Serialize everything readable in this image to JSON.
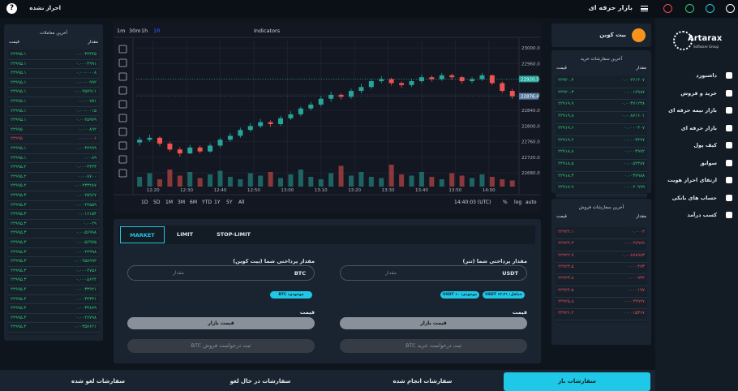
{
  "topbar": {
    "title": "بازار حرفه ای",
    "status": "احراز نشده",
    "help": "?"
  },
  "nav": {
    "logo": "Artarax",
    "logo_sub": "Software Group",
    "items": [
      "داشبورد",
      "خرید و فروش",
      "بازار نیمه حرفه ای",
      "بازار حرفه ای",
      "کیف پول",
      "سوابق",
      "ارتقای احراز هویت",
      "حساب های بانکی",
      "کسب درآمد"
    ]
  },
  "coin": {
    "name": "بیت کوین"
  },
  "buy_orders": {
    "title": "آخرین سفارشات خرید",
    "columns": [
      "مقدار",
      "قیمت"
    ],
    "color": "#2ecc71",
    "rows": [
      [
        "۰.۰۰۲۲۱۴۰۷",
        "۲۲۹۲۰.۴"
      ],
      [
        "۰.۰۰۱۷۹۸۷",
        "۲۲۹۲۰.۳"
      ],
      [
        "۰.۰۰۳۷۱۲۳۸",
        "۲۲۹۱۹.۹"
      ],
      [
        "۰.۰۰۸۷۱۶۰۱",
        "۲۲۹۱۹.۸"
      ],
      [
        "۰.۰۰۰۰۴۰۷",
        "۲۲۹۱۹.۶"
      ],
      [
        "۰.۰۰۰۳۴۲۷",
        "۲۲۹۱۹.۲"
      ],
      [
        "۰.۰۰۰۴۹۷۲",
        "۲۲۹۱۸.۸"
      ],
      [
        "۰.۰۰۵۲۳۸۷",
        "۲۲۹۱۸.۵"
      ],
      [
        "۰.۰۰۳۷۹۸۸",
        "۲۲۹۱۸.۳"
      ],
      [
        "۰.۰۰۲۰۹۹۹",
        "۲۲۹۱۷.۹"
      ]
    ]
  },
  "sell_orders": {
    "title": "آخرین سفارشات فروش",
    "columns": [
      "مقدار",
      "قیمت"
    ],
    "color": "#e74c5a",
    "rows": [
      [
        "۰.۰۰۰۴",
        "۲۲۹۲۲.۱"
      ],
      [
        "۰.۰۰۲۷۹۸۹",
        "۲۲۹۲۲.۳"
      ],
      [
        "۰.۰۰۸۷۸۹۸۳",
        "۲۲۹۲۲.۷"
      ],
      [
        "۰.۰۰۰۴۷۳",
        "۲۲۹۲۳.۵"
      ],
      [
        "۰.۰۰۰۹۳۲",
        "۲۲۹۲۳.۸"
      ],
      [
        "۰.۰۰۰۱۹۷",
        "۲۲۹۲۴.۵"
      ],
      [
        "۰.۰۰۲۲۹۲۷",
        "۲۲۹۲۵.۸"
      ],
      [
        "۰.۰۰۱۵۳۶۷",
        "۲۲۹۲۶.۲"
      ]
    ]
  },
  "trades": {
    "title": "آخرین معاملات",
    "columns": [
      "مقدار",
      "قیمت"
    ],
    "rows": [
      [
        "۰.۰۰۳۲۴۴۵",
        "۲۲۹۹۵.۱"
      ],
      [
        "۰.۰۰۰۴۹۹۱",
        "۲۲۹۹۵.۱"
      ],
      [
        "۰.۰۰۰۰۰۰۸",
        "۲۲۹۹۵.۱"
      ],
      [
        "۰.۰۰۰۰۹۹۲",
        "۲۲۹۹۵.۱"
      ],
      [
        "۰.۰۰۲۵۷۹۱۱",
        "۲۲۹۹۵.۱"
      ],
      [
        "۰.۰۰۰۷۵۱",
        "۲۲۹۹۵.۱"
      ],
      [
        "۰.۰۰۰۰۰۱۵",
        "۲۲۹۹۵.۱"
      ],
      [
        "۰.۰۰۲۵۹۷۹",
        "۲۲۹۹۵.۱"
      ],
      [
        "۰.۰۰۰۸۹۲",
        "۲۲۹۹۵"
      ],
      [
        "۰.۰۰۰۰۰۶",
        "۲۲۹۹۵"
      ],
      [
        "۰.۰۰۳۷۹۹۹",
        "۲۲۹۹۵.۱"
      ],
      [
        "۰.۰۰۸۹",
        "۲۲۹۹۵.۱"
      ],
      [
        "۰.۰۰۰۴۴۴۳",
        "۲۲۹۹۵.۲"
      ],
      [
        "۰.۰۰۸۷۰۰",
        "۲۲۹۹۵.۲"
      ],
      [
        "۰.۰۰۲۳۳۲۸۷",
        "۲۲۹۹۵.۲"
      ],
      [
        "۰.۰۰۲۵۹۶۷",
        "۲۲۹۹۵.۳"
      ],
      [
        "۰.۰۰۲۲۵۵۹",
        "۲۲۹۹۵.۳"
      ],
      [
        "۰.۰۱۶۱۵۴",
        "۲۲۹۹۵.۳"
      ],
      [
        "۰.۰۰۲۹",
        "۲۲۹۹۵.۳"
      ],
      [
        "۰.۰۰۵۶۹۹۸",
        "۲۲۹۹۵.۳"
      ],
      [
        "۰.۰۰۵۶۹۷۵",
        "۲۲۹۹۵.۳"
      ],
      [
        "۰.۰۰۲۲۹۹۸",
        "۲۲۹۹۵.۳"
      ],
      [
        "۰.۰۰۲۵۸۹۹۲",
        "۲۲۹۹۵.۳"
      ],
      [
        "۰.۰۰۰۲۷۵۶",
        "۲۲۹۹۵.۳"
      ],
      [
        "۰.۰۰۰۵۶۲۴",
        "۲۲۹۹۵.۳"
      ],
      [
        "۰.۰۰۳۳۹۲۱",
        "۲۲۹۹۵.۴"
      ],
      [
        "۰.۰۰۳۴۳۳۱",
        "۲۲۹۹۵.۴"
      ],
      [
        "۰.۰۰۳۴۸۷۹",
        "۲۲۹۹۵.۴"
      ],
      [
        "۰.۰۰۲۶۷۹۸",
        "۲۲۹۹۵.۴"
      ],
      [
        "۰.۰۰۳۵۷۶۲۱",
        "۲۲۹۹۵.۴"
      ]
    ],
    "colors": [
      "#2ecc71",
      "#2ecc71",
      "#2ecc71",
      "#2ecc71",
      "#2ecc71",
      "#2ecc71",
      "#2ecc71",
      "#2ecc71",
      "#2ecc71",
      "#e74c5a",
      "#2ecc71",
      "#2ecc71",
      "#2ecc71",
      "#2ecc71",
      "#2ecc71",
      "#2ecc71",
      "#2ecc71",
      "#2ecc71",
      "#2ecc71",
      "#2ecc71",
      "#2ecc71",
      "#2ecc71",
      "#2ecc71",
      "#2ecc71",
      "#2ecc71",
      "#2ecc71",
      "#2ecc71",
      "#2ecc71",
      "#2ecc71",
      "#2ecc71"
    ]
  },
  "chart_data": {
    "type": "candlestick",
    "intervals": [
      "1m",
      "30m",
      "1h",
      "1R"
    ],
    "indicators": "Indicators",
    "ranges": [
      "1D",
      "5D",
      "1M",
      "3M",
      "6M",
      "YTD",
      "1Y",
      "5Y",
      "All"
    ],
    "clock": "14:40:03 (UTC)",
    "options": [
      "%",
      "log",
      "auto"
    ],
    "up_color": "#26a69a",
    "down_color": "#ef5350",
    "xlim": [
      735,
      849
    ],
    "xticks": [
      {
        "value": 740,
        "label": "12:20"
      },
      {
        "value": 750,
        "label": "12:30"
      },
      {
        "value": 760,
        "label": "12:40"
      },
      {
        "value": 770,
        "label": "12:50"
      },
      {
        "value": 780,
        "label": "13:00"
      },
      {
        "value": 790,
        "label": "13:10"
      },
      {
        "value": 800,
        "label": "13:20"
      },
      {
        "value": 810,
        "label": "13:30"
      },
      {
        "value": 820,
        "label": "13:40"
      },
      {
        "value": 830,
        "label": "13:50"
      },
      {
        "value": 840,
        "label": "14:00"
      }
    ],
    "ylim": [
      22645,
      23019
    ],
    "yticks": [
      {
        "value": 23000,
        "label": "23000.0"
      },
      {
        "value": 22960,
        "label": "22960.0"
      },
      {
        "value": 22920,
        "label": "22920.0"
      },
      {
        "value": 22880,
        "label": "22880.0"
      },
      {
        "value": 22840,
        "label": "22840.0"
      },
      {
        "value": 22800,
        "label": "22800.0"
      },
      {
        "value": 22760,
        "label": "22760.0"
      },
      {
        "value": 22720,
        "label": "22720.0"
      },
      {
        "value": 22680,
        "label": "22680.0"
      }
    ],
    "price_markers": [
      {
        "value": 22920.5,
        "label": "22920.5",
        "color": "#26a69a"
      },
      {
        "value": 22876.4,
        "label": "22876.4",
        "color": "#5b7fa6"
      }
    ],
    "grid": true,
    "x": [
      736,
      739,
      742,
      745,
      748,
      751,
      754,
      757,
      760,
      763,
      766,
      769,
      772,
      775,
      778,
      781,
      784,
      787,
      790,
      793,
      796,
      799,
      802,
      805,
      808,
      811,
      814,
      817,
      820,
      823,
      826,
      829,
      832,
      835,
      838,
      841,
      844,
      847
    ],
    "candles": [
      [
        22758,
        22772,
        22750,
        22765
      ],
      [
        22765,
        22778,
        22760,
        22770
      ],
      [
        22770,
        22774,
        22748,
        22755
      ],
      [
        22755,
        22760,
        22735,
        22740
      ],
      [
        22740,
        22746,
        22722,
        22730
      ],
      [
        22730,
        22752,
        22728,
        22745
      ],
      [
        22745,
        22750,
        22730,
        22735
      ],
      [
        22735,
        22756,
        22732,
        22750
      ],
      [
        22750,
        22770,
        22745,
        22765
      ],
      [
        22765,
        22782,
        22760,
        22775
      ],
      [
        22775,
        22796,
        22770,
        22790
      ],
      [
        22790,
        22808,
        22785,
        22800
      ],
      [
        22800,
        22818,
        22795,
        22810
      ],
      [
        22810,
        22815,
        22798,
        22805
      ],
      [
        22805,
        22826,
        22800,
        22820
      ],
      [
        22820,
        22838,
        22815,
        22830
      ],
      [
        22830,
        22850,
        22825,
        22845
      ],
      [
        22845,
        22862,
        22840,
        22855
      ],
      [
        22855,
        22876,
        22850,
        22870
      ],
      [
        22870,
        22888,
        22862,
        22880
      ],
      [
        22880,
        22884,
        22868,
        22875
      ],
      [
        22875,
        22896,
        22870,
        22890
      ],
      [
        22890,
        22908,
        22884,
        22900
      ],
      [
        22900,
        22920,
        22895,
        22915
      ],
      [
        22915,
        22928,
        22910,
        22920
      ],
      [
        22920,
        22924,
        22904,
        22910
      ],
      [
        22910,
        22914,
        22898,
        22905
      ],
      [
        22905,
        22920,
        22900,
        22915
      ],
      [
        22915,
        22932,
        22910,
        22925
      ],
      [
        22925,
        22930,
        22914,
        22920
      ],
      [
        22920,
        22936,
        22916,
        22930
      ],
      [
        22930,
        22934,
        22918,
        22925
      ],
      [
        22925,
        22928,
        22908,
        22915
      ],
      [
        22915,
        22926,
        22910,
        22920
      ],
      [
        22920,
        22936,
        22916,
        22930
      ],
      [
        22930,
        22932,
        22905,
        22910
      ],
      [
        22910,
        22914,
        22885,
        22890
      ],
      [
        22890,
        22895,
        22870,
        22876.4
      ]
    ],
    "volume_lim": [
      0,
      100
    ],
    "volumes": [
      40,
      55,
      30,
      70,
      45,
      60,
      35,
      50,
      65,
      40,
      30,
      55,
      45,
      60,
      35,
      50,
      70,
      40,
      30,
      55,
      85,
      45,
      60,
      40,
      35,
      90,
      50,
      45,
      60,
      40,
      30,
      55,
      45,
      35,
      50,
      40,
      30,
      25
    ]
  },
  "form": {
    "tabs": [
      "MARKET",
      "LIMIT",
      "STOP-LIMIT"
    ],
    "buy": {
      "label": "مقدار پرداختی شما (تتر)",
      "placeholder": "مقدار",
      "unit": "USDT",
      "badges": [
        "حداقل: ۱۳.۳۱ USDT",
        "موجودی: ۱۰ USDT"
      ],
      "price_label": "قیمت",
      "price_button": "قیمت بازار",
      "submit": "ثبت درخواست خرید BTC"
    },
    "sell": {
      "label": "مقدار پرداختی شما (بیت کوین)",
      "placeholder": "مقدار",
      "unit": "BTC",
      "badges": [
        "موجودی: BTC"
      ],
      "price_label": "قیمت",
      "price_button": "قیمت بازار",
      "submit": "ثبت درخواست فروش BTC"
    }
  },
  "tabs": [
    "سفارشات باز",
    "سفارشات انجام شده",
    "سفارشات در حال لغو",
    "سفارشات لغو شده"
  ]
}
